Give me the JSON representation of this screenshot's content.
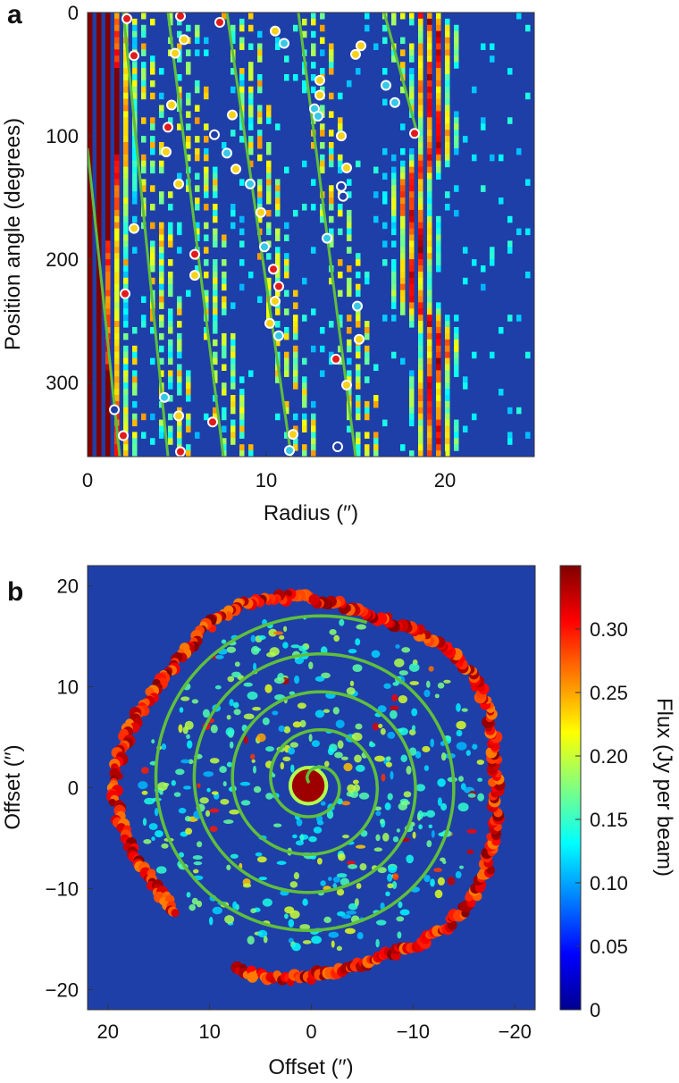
{
  "panels": {
    "a": {
      "letter": "a"
    },
    "b": {
      "letter": "b"
    }
  },
  "colors": {
    "model_curve": "#5fbf3c",
    "marker_edge": "#ffffff",
    "background_emission": "#1f3fa8",
    "colormap": [
      "#00008f",
      "#0000ff",
      "#0080ff",
      "#00ffff",
      "#80ff80",
      "#ffff00",
      "#ff8000",
      "#ff0000",
      "#800000"
    ]
  },
  "chart_data": [
    {
      "id": "a",
      "type": "heatmap",
      "title": "",
      "xlabel": "Radius (′′)",
      "ylabel": "Position angle (degrees)",
      "xlim": [
        0,
        25
      ],
      "ylim": [
        0,
        360
      ],
      "y_inverted": true,
      "x_ticks": [
        0,
        10,
        20
      ],
      "x_tick_labels": [
        "0",
        "10",
        "20"
      ],
      "y_ticks": [
        0,
        100,
        200,
        300
      ],
      "y_tick_labels": [
        "0",
        "100",
        "200",
        "300"
      ],
      "emission_ridges": [
        {
          "radius": 18.7,
          "wander": 0.7,
          "strength": 1.0
        },
        {
          "radius": 1.2,
          "wander": 0.4,
          "strength": 1.0
        }
      ],
      "spiral_lines": [
        {
          "r_start": 0.0,
          "r_end": 1.8,
          "pa_start": 110,
          "pa_end": 360
        },
        {
          "r_start": 2.0,
          "r_end": 4.5,
          "pa_start": 0,
          "pa_end": 360
        },
        {
          "r_start": 4.5,
          "r_end": 7.6,
          "pa_start": 0,
          "pa_end": 360
        },
        {
          "r_start": 7.8,
          "r_end": 11.4,
          "pa_start": 0,
          "pa_end": 360
        },
        {
          "r_start": 11.8,
          "r_end": 15.0,
          "pa_start": 0,
          "pa_end": 360
        },
        {
          "r_start": 16.6,
          "r_end": 18.4,
          "pa_start": 0,
          "pa_end": 95
        }
      ],
      "markers": [
        {
          "r": 2.2,
          "pa": 5,
          "fill": "red"
        },
        {
          "r": 2.6,
          "pa": 35,
          "fill": "red"
        },
        {
          "r": 2.6,
          "pa": 175,
          "fill": "yellow"
        },
        {
          "r": 2.1,
          "pa": 228,
          "fill": "red"
        },
        {
          "r": 1.5,
          "pa": 322,
          "fill": "blue"
        },
        {
          "r": 2.0,
          "pa": 343,
          "fill": "red"
        },
        {
          "r": 5.2,
          "pa": 3,
          "fill": "red"
        },
        {
          "r": 5.4,
          "pa": 22,
          "fill": "yellow"
        },
        {
          "r": 4.9,
          "pa": 33,
          "fill": "yellow"
        },
        {
          "r": 4.7,
          "pa": 75,
          "fill": "yellow"
        },
        {
          "r": 4.5,
          "pa": 93,
          "fill": "red"
        },
        {
          "r": 4.4,
          "pa": 113,
          "fill": "yellow"
        },
        {
          "r": 5.1,
          "pa": 139,
          "fill": "yellow"
        },
        {
          "r": 6.0,
          "pa": 196,
          "fill": "red"
        },
        {
          "r": 6.0,
          "pa": 213,
          "fill": "yellow"
        },
        {
          "r": 4.3,
          "pa": 312,
          "fill": "cyan"
        },
        {
          "r": 5.1,
          "pa": 327,
          "fill": "yellow"
        },
        {
          "r": 5.2,
          "pa": 356,
          "fill": "red"
        },
        {
          "r": 7.4,
          "pa": 8,
          "fill": "red"
        },
        {
          "r": 7.0,
          "pa": 332,
          "fill": "red"
        },
        {
          "r": 8.1,
          "pa": 83,
          "fill": "yellow"
        },
        {
          "r": 7.1,
          "pa": 99,
          "fill": "blue"
        },
        {
          "r": 7.8,
          "pa": 114,
          "fill": "cyan"
        },
        {
          "r": 8.3,
          "pa": 127,
          "fill": "yellow"
        },
        {
          "r": 9.1,
          "pa": 139,
          "fill": "cyan"
        },
        {
          "r": 9.7,
          "pa": 162,
          "fill": "yellow"
        },
        {
          "r": 9.9,
          "pa": 190,
          "fill": "cyan"
        },
        {
          "r": 10.4,
          "pa": 208,
          "fill": "red"
        },
        {
          "r": 10.7,
          "pa": 222,
          "fill": "red"
        },
        {
          "r": 10.5,
          "pa": 234,
          "fill": "yellow"
        },
        {
          "r": 10.2,
          "pa": 252,
          "fill": "yellow"
        },
        {
          "r": 10.7,
          "pa": 262,
          "fill": "cyan"
        },
        {
          "r": 11.5,
          "pa": 342,
          "fill": "yellow"
        },
        {
          "r": 11.3,
          "pa": 355,
          "fill": "cyan"
        },
        {
          "r": 10.5,
          "pa": 15,
          "fill": "yellow"
        },
        {
          "r": 11.0,
          "pa": 25,
          "fill": "cyan"
        },
        {
          "r": 13.0,
          "pa": 55,
          "fill": "yellow"
        },
        {
          "r": 13.0,
          "pa": 67,
          "fill": "yellow"
        },
        {
          "r": 12.7,
          "pa": 78,
          "fill": "cyan"
        },
        {
          "r": 12.9,
          "pa": 84,
          "fill": "cyan"
        },
        {
          "r": 14.2,
          "pa": 100,
          "fill": "yellow"
        },
        {
          "r": 14.5,
          "pa": 126,
          "fill": "yellow"
        },
        {
          "r": 14.2,
          "pa": 141,
          "fill": "blue"
        },
        {
          "r": 14.3,
          "pa": 149,
          "fill": "blue"
        },
        {
          "r": 13.4,
          "pa": 183,
          "fill": "cyan"
        },
        {
          "r": 15.1,
          "pa": 238,
          "fill": "cyan"
        },
        {
          "r": 15.2,
          "pa": 265,
          "fill": "yellow"
        },
        {
          "r": 13.9,
          "pa": 281,
          "fill": "red"
        },
        {
          "r": 14.5,
          "pa": 302,
          "fill": "yellow"
        },
        {
          "r": 14.0,
          "pa": 352,
          "fill": "blue"
        },
        {
          "r": 15.3,
          "pa": 27,
          "fill": "yellow"
        },
        {
          "r": 15.0,
          "pa": 34,
          "fill": "yellow"
        },
        {
          "r": 16.7,
          "pa": 59,
          "fill": "cyan"
        },
        {
          "r": 17.2,
          "pa": 73,
          "fill": "cyan"
        },
        {
          "r": 18.3,
          "pa": 98,
          "fill": "red"
        }
      ]
    },
    {
      "id": "b",
      "type": "heatmap",
      "title": "",
      "xlabel": "Offset (′′)",
      "ylabel": "Offset (′′)",
      "xlim": [
        22,
        -22
      ],
      "ylim": [
        -22,
        22
      ],
      "x_ticks": [
        20,
        10,
        0,
        -10,
        -20
      ],
      "x_tick_labels": [
        "20",
        "10",
        "0",
        "−10",
        "−20"
      ],
      "y_ticks": [
        20,
        10,
        0,
        -10,
        -20
      ],
      "y_tick_labels": [
        "20",
        "10",
        "0",
        "−10",
        "−20"
      ],
      "colorbar": {
        "label": "Flux (Jy per beam)",
        "range": [
          0,
          0.35
        ],
        "ticks": [
          0,
          0.05,
          0.1,
          0.15,
          0.2,
          0.25,
          0.3
        ],
        "tick_labels": [
          "0",
          "0.05",
          "0.10",
          "0.15",
          "0.20",
          "0.25",
          "0.30"
        ]
      },
      "outer_ring": {
        "radius": 18.7,
        "gap_position_angle": 145
      },
      "inner_core": {
        "x": 0.3,
        "y": 0.2,
        "radius": 1.6
      },
      "model_spiral": {
        "center": [
          -0.3,
          0.5
        ],
        "radius_start": 0.5,
        "radius_end": 16.7,
        "turns": 4.3,
        "orientation": "clockwise outward"
      }
    }
  ]
}
